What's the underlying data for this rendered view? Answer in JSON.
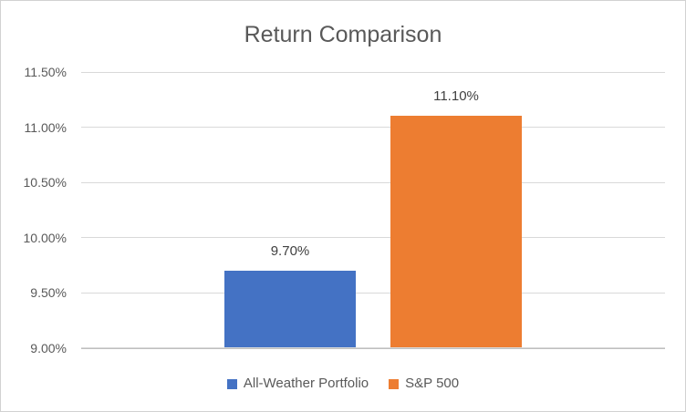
{
  "chart_data": {
    "type": "bar",
    "title": "Return Comparison",
    "categories": [
      "All-Weather Portfolio",
      "S&P 500"
    ],
    "values": [
      9.7,
      11.1
    ],
    "data_labels": [
      "9.70%",
      "11.10%"
    ],
    "series_colors": [
      "#4472C4",
      "#ED7D31"
    ],
    "xlabel": "",
    "ylabel": "",
    "ylim": [
      9.0,
      11.5
    ],
    "yticks": [
      9.0,
      9.5,
      10.0,
      10.5,
      11.0,
      11.5
    ],
    "ytick_labels": [
      "9.00%",
      "9.50%",
      "10.00%",
      "10.50%",
      "11.00%",
      "11.50%"
    ],
    "grid": true,
    "legend_position": "bottom",
    "legend": [
      "All-Weather Portfolio",
      "S&P 500"
    ]
  },
  "colors": {
    "title_text": "#595959",
    "axis_text": "#595959",
    "data_label_text": "#404040",
    "gridline": "#D9D9D9",
    "axis_line": "#BFBFBF",
    "border": "#D2D2D2",
    "background": "#FFFFFF"
  }
}
